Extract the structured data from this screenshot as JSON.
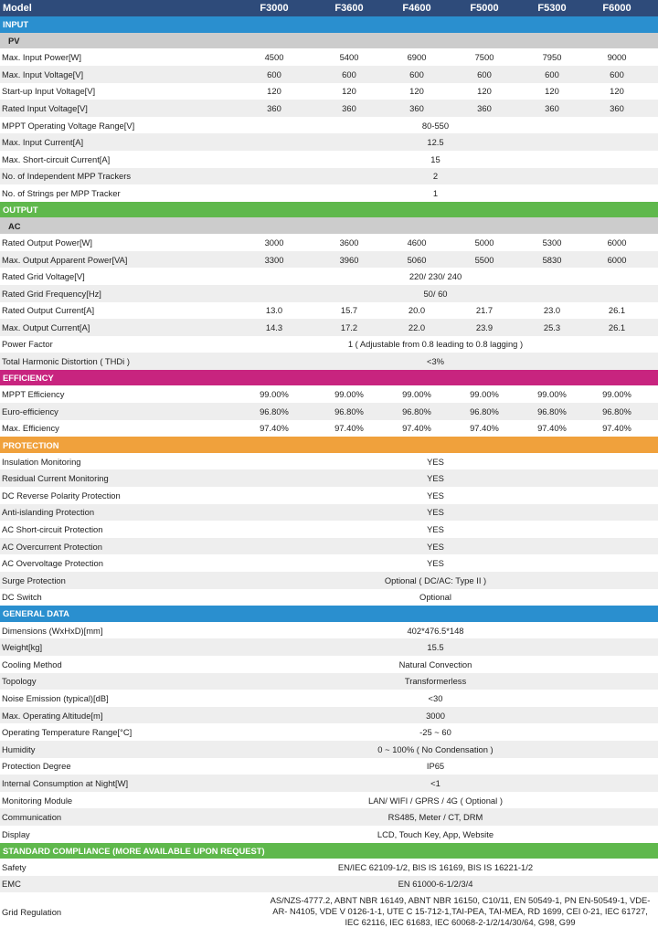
{
  "header": {
    "label": "Model",
    "models": [
      "F3000",
      "F3600",
      "F4600",
      "F5000",
      "F5300",
      "F6000"
    ]
  },
  "colors": {
    "header_bg": "#2e4b7a",
    "input": "#2a8fcf",
    "output": "#5fb84c",
    "efficiency": "#c8247f",
    "protection": "#f0a13c",
    "general_data": "#2a8fcf",
    "standard_compliance": "#5fb84c",
    "subsection_bg": "#cccccc",
    "stripe_bg": "#eeeeee"
  },
  "sections": [
    {
      "title": "INPUT",
      "color_key": "input",
      "subsection": "PV",
      "rows": [
        {
          "label": "Max. Input Power[W]",
          "values": [
            "4500",
            "5400",
            "6900",
            "7500",
            "7950",
            "9000"
          ]
        },
        {
          "label": "Max. Input Voltage[V]",
          "values": [
            "600",
            "600",
            "600",
            "600",
            "600",
            "600"
          ]
        },
        {
          "label": "Start-up Input Voltage[V]",
          "values": [
            "120",
            "120",
            "120",
            "120",
            "120",
            "120"
          ]
        },
        {
          "label": "Rated Input Voltage[V]",
          "values": [
            "360",
            "360",
            "360",
            "360",
            "360",
            "360"
          ]
        },
        {
          "label": "MPPT Operating Voltage Range[V]",
          "span": "80-550"
        },
        {
          "label": "Max. Input Current[A]",
          "span": "12.5"
        },
        {
          "label": "Max. Short-circuit Current[A]",
          "span": "15"
        },
        {
          "label": "No. of Independent MPP Trackers",
          "span": "2"
        },
        {
          "label": "No. of Strings per MPP Tracker",
          "span": "1"
        }
      ]
    },
    {
      "title": "OUTPUT",
      "color_key": "output",
      "subsection": "AC",
      "rows": [
        {
          "label": "Rated Output Power[W]",
          "values": [
            "3000",
            "3600",
            "4600",
            "5000",
            "5300",
            "6000"
          ]
        },
        {
          "label": "Max. Output Apparent Power[VA]",
          "values": [
            "3300",
            "3960",
            "5060",
            "5500",
            "5830",
            "6000"
          ]
        },
        {
          "label": "Rated Grid Voltage[V]",
          "span": "220/ 230/ 240"
        },
        {
          "label": "Rated Grid Frequency[Hz]",
          "span": "50/ 60"
        },
        {
          "label": "Rated Output Current[A]",
          "values": [
            "13.0",
            "15.7",
            "20.0",
            "21.7",
            "23.0",
            "26.1"
          ]
        },
        {
          "label": "Max. Output Current[A]",
          "values": [
            "14.3",
            "17.2",
            "22.0",
            "23.9",
            "25.3",
            "26.1"
          ]
        },
        {
          "label": "Power Factor",
          "span": "1 ( Adjustable from 0.8 leading to 0.8 lagging )"
        },
        {
          "label": "Total Harmonic Distortion ( THDi )",
          "span": "<3%"
        }
      ]
    },
    {
      "title": "EFFICIENCY",
      "color_key": "efficiency",
      "rows": [
        {
          "label": "MPPT Efficiency",
          "values": [
            "99.00%",
            "99.00%",
            "99.00%",
            "99.00%",
            "99.00%",
            "99.00%"
          ]
        },
        {
          "label": "Euro-efficiency",
          "values": [
            "96.80%",
            "96.80%",
            "96.80%",
            "96.80%",
            "96.80%",
            "96.80%"
          ]
        },
        {
          "label": "Max. Efficiency",
          "values": [
            "97.40%",
            "97.40%",
            "97.40%",
            "97.40%",
            "97.40%",
            "97.40%"
          ]
        }
      ]
    },
    {
      "title": "PROTECTION",
      "color_key": "protection",
      "rows": [
        {
          "label": "Insulation Monitoring",
          "span": "YES"
        },
        {
          "label": "Residual Current Monitoring",
          "span": "YES"
        },
        {
          "label": "DC Reverse Polarity Protection",
          "span": "YES"
        },
        {
          "label": "Anti-islanding Protection",
          "span": "YES"
        },
        {
          "label": "AC Short-circuit Protection",
          "span": "YES"
        },
        {
          "label": "AC Overcurrent Protection",
          "span": "YES"
        },
        {
          "label": "AC Overvoltage Protection",
          "span": "YES"
        },
        {
          "label": "Surge Protection",
          "span": "Optional ( DC/AC: Type II )"
        },
        {
          "label": "DC Switch",
          "span": "Optional"
        }
      ]
    },
    {
      "title": "GENERAL DATA",
      "color_key": "general_data",
      "rows": [
        {
          "label": "Dimensions (WxHxD)[mm]",
          "span": "402*476.5*148"
        },
        {
          "label": "Weight[kg]",
          "span": "15.5"
        },
        {
          "label": "Cooling Method",
          "span": "Natural Convection"
        },
        {
          "label": "Topology",
          "span": "Transformerless"
        },
        {
          "label": "Noise Emission (typical)[dB]",
          "span": "<30"
        },
        {
          "label": "Max. Operating Altitude[m]",
          "span": "3000"
        },
        {
          "label": "Operating Temperature Range[°C]",
          "span": "-25 ~ 60"
        },
        {
          "label": "Humidity",
          "span": "0 ~ 100% ( No Condensation )"
        },
        {
          "label": "Protection Degree",
          "span": "IP65"
        },
        {
          "label": "Internal Consumption at Night[W]",
          "span": "<1"
        },
        {
          "label": "Monitoring Module",
          "span": "LAN/ WIFI / GPRS / 4G ( Optional )"
        },
        {
          "label": "Communication",
          "span": "RS485, Meter / CT, DRM"
        },
        {
          "label": "Display",
          "span": "LCD, Touch Key, App, Website"
        }
      ]
    },
    {
      "title": "STANDARD COMPLIANCE (MORE AVAILABLE UPON REQUEST)",
      "color_key": "standard_compliance",
      "rows": [
        {
          "label": "Safety",
          "span": "EN/IEC 62109-1/2, BIS IS 16169, BIS IS 16221-1/2"
        },
        {
          "label": "EMC",
          "span": "EN 61000-6-1/2/3/4"
        },
        {
          "label": "Grid Regulation",
          "span": "AS/NZS-4777.2, ABNT NBR 16149, ABNT NBR 16150,  C10/11, EN 50549-1, PN EN-50549-1, VDE-AR- N4105, VDE V 0126-1-1, UTE C 15-712-1,TAI-PEA, TAI-MEA, RD 1699, CEI 0-21, IEC 61727, IEC 62116, IEC 61683, IEC 60068-2-1/2/14/30/64, G98, G99",
          "tall": true
        }
      ]
    }
  ]
}
